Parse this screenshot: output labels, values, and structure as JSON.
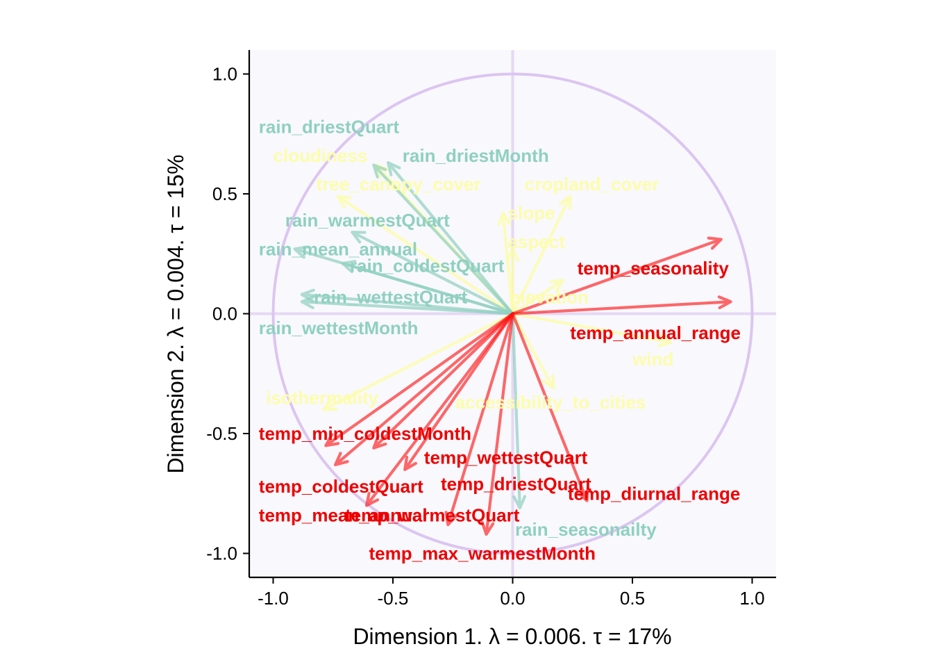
{
  "chart_data": {
    "type": "scatter",
    "subtype": "correlation-circle",
    "xlabel": "Dimension 1.   λ = 0.006.  τ = 17%",
    "ylabel": "Dimension 2.   λ = 0.004.   τ = 15%",
    "xlim": [
      -1.1,
      1.1
    ],
    "ylim": [
      -1.1,
      1.1
    ],
    "xticks": [
      "-1.0",
      "-0.5",
      "0.0",
      "0.5",
      "1.0"
    ],
    "yticks": [
      "-1.0",
      "-0.5",
      "0.0",
      "0.5",
      "1.0"
    ],
    "xtick_values": [
      -1.0,
      -0.5,
      0.0,
      0.5,
      1.0
    ],
    "ytick_values": [
      -1.0,
      -0.5,
      0.0,
      0.5,
      1.0
    ],
    "panel_background": "#f8f8fd",
    "circle_color": "#dcc5f0",
    "crosshair_color": "#e6d8f4",
    "group_colors": {
      "rain": "#8fd0c1",
      "other": "#fdfdaa",
      "temp": "#ff1010"
    },
    "label_colors": {
      "rain": "#8fd0c1",
      "other": "#fdfdaa",
      "temp": "#ee0000"
    },
    "variables": [
      {
        "group": "other",
        "label": "cloudiness",
        "x": -0.57,
        "y": 0.62,
        "lx": -1.0,
        "ly": 0.66
      },
      {
        "group": "other",
        "label": "tree_canopy_cover",
        "x": -0.73,
        "y": 0.49,
        "lx": -0.82,
        "ly": 0.54
      },
      {
        "group": "other",
        "label": "cropland_cover",
        "x": 0.24,
        "y": 0.49,
        "lx": 0.05,
        "ly": 0.54
      },
      {
        "group": "other",
        "label": "slope",
        "x": -0.04,
        "y": 0.42,
        "lx": -0.02,
        "ly": 0.42
      },
      {
        "group": "other",
        "label": "aspect",
        "x": 0.0,
        "y": 0.27,
        "lx": -0.02,
        "ly": 0.3
      },
      {
        "group": "other",
        "label": "elevation",
        "x": 0.21,
        "y": 0.14,
        "lx": -0.01,
        "ly": 0.07
      },
      {
        "group": "other",
        "label": "wind",
        "x": 0.66,
        "y": -0.12,
        "lx": 0.5,
        "ly": -0.19
      },
      {
        "group": "other",
        "label": "accessibility_to_cities",
        "x": 0.17,
        "y": -0.31,
        "lx": -0.24,
        "ly": -0.37
      },
      {
        "group": "other",
        "label": "isothermality",
        "x": -0.79,
        "y": -0.4,
        "lx": -1.03,
        "ly": -0.35
      },
      {
        "group": "rain",
        "label": "rain_driestQuart",
        "x": -0.58,
        "y": 0.62,
        "lx": -1.06,
        "ly": 0.78
      },
      {
        "group": "rain",
        "label": "rain_driestMonth",
        "x": -0.52,
        "y": 0.63,
        "lx": -0.46,
        "ly": 0.66
      },
      {
        "group": "rain",
        "label": "rain_warmestQuart",
        "x": -0.67,
        "y": 0.34,
        "lx": -0.95,
        "ly": 0.39
      },
      {
        "group": "rain",
        "label": "rain_mean_annual",
        "x": -0.91,
        "y": 0.27,
        "lx": -1.06,
        "ly": 0.27
      },
      {
        "group": "rain",
        "label": "rain_coldestQuart",
        "x": -0.71,
        "y": 0.21,
        "lx": -0.68,
        "ly": 0.2
      },
      {
        "group": "rain",
        "label": "rain_wettestQuart",
        "x": -0.88,
        "y": 0.08,
        "lx": -0.83,
        "ly": 0.07
      },
      {
        "group": "rain",
        "label": "rain_wettestMonth",
        "x": -0.88,
        "y": 0.05,
        "lx": -1.06,
        "ly": -0.06
      },
      {
        "group": "rain",
        "label": "rain_seasonailty",
        "x": 0.03,
        "y": -0.81,
        "lx": 0.01,
        "ly": -0.9
      },
      {
        "group": "temp",
        "label": "temp_seasonality",
        "x": 0.87,
        "y": 0.31,
        "lx": 0.27,
        "ly": 0.19
      },
      {
        "group": "temp",
        "label": "temp_annual_range",
        "x": 0.91,
        "y": 0.05,
        "lx": 0.24,
        "ly": -0.08
      },
      {
        "group": "temp",
        "label": "temp_min_coldestMonth",
        "x": -0.78,
        "y": -0.55,
        "lx": -1.06,
        "ly": -0.5
      },
      {
        "group": "temp",
        "label": "temp_coldestQuart",
        "x": -0.74,
        "y": -0.63,
        "lx": -1.06,
        "ly": -0.72
      },
      {
        "group": "temp",
        "label": "temp_mean_annual",
        "x": -0.61,
        "y": -0.8,
        "lx": -1.06,
        "ly": -0.84
      },
      {
        "group": "temp",
        "label": "temp_warmestQuart",
        "x": -0.27,
        "y": -0.88,
        "lx": -0.7,
        "ly": -0.84
      },
      {
        "group": "temp",
        "label": "temp_max_warmestMonth",
        "x": -0.11,
        "y": -0.92,
        "lx": -0.6,
        "ly": -1.0
      },
      {
        "group": "temp",
        "label": "temp_wettestQuart",
        "x": -0.58,
        "y": -0.56,
        "lx": -0.37,
        "ly": -0.6
      },
      {
        "group": "temp",
        "label": "temp_driestQuart",
        "x": -0.45,
        "y": -0.65,
        "lx": -0.3,
        "ly": -0.71
      },
      {
        "group": "temp",
        "label": "temp_diurnal_range",
        "x": 0.31,
        "y": -0.78,
        "lx": 0.23,
        "ly": -0.75
      }
    ]
  }
}
